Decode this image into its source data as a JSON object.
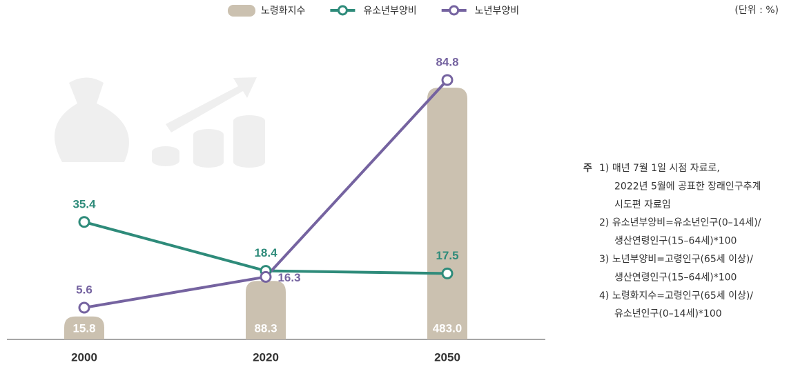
{
  "chart_data": {
    "type": "combo",
    "unit": "(단위 : %)",
    "categories": [
      "2000",
      "2020",
      "2050"
    ],
    "series": [
      {
        "name": "노령화지수",
        "type": "bar",
        "color": "#cbc1b0",
        "values": [
          15.8,
          88.3,
          483.0
        ],
        "value_labels": [
          "15.8",
          "88.3",
          "483.0"
        ]
      },
      {
        "name": "유소년부양비",
        "type": "line",
        "color": "#2e8b7a",
        "values": [
          35.4,
          18.4,
          17.5
        ]
      },
      {
        "name": "노년부양비",
        "type": "line",
        "color": "#7563a0",
        "values": [
          5.6,
          16.3,
          84.8
        ]
      }
    ]
  },
  "notes": {
    "label": "주",
    "items": [
      [
        "1) 매년 7월 1일 시점 자료로,",
        "2022년 5월에 공표한 장래인구추계",
        "시도편 자료임"
      ],
      [
        "2) 유소년부양비=유소년인구(0–14세)/",
        "생산연령인구(15–64세)*100"
      ],
      [
        "3) 노년부양비=고령인구(65세 이상)/",
        "생산연령인구(15–64세)*100"
      ],
      [
        "4) 노령화지수=고령인구(65세 이상)/",
        "유소년인구(0–14세)*100"
      ]
    ]
  }
}
